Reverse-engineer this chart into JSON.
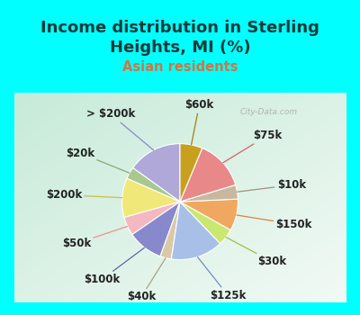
{
  "title": "Income distribution in Sterling\nHeights, MI (%)",
  "subtitle": "Asian residents",
  "title_color": "#1a3a3a",
  "subtitle_color": "#cc7744",
  "bg_cyan": "#00ffff",
  "bg_chart_gradient_left": "#c8e8d8",
  "bg_chart_gradient_right": "#e8f4f0",
  "labels": [
    "> $200k",
    "$20k",
    "$200k",
    "$50k",
    "$100k",
    "$40k",
    "$125k",
    "$30k",
    "$150k",
    "$10k",
    "$75k",
    "$60k"
  ],
  "sizes": [
    14.5,
    3.2,
    10.5,
    5.0,
    9.5,
    3.0,
    14.0,
    4.5,
    8.5,
    3.8,
    13.5,
    6.0
  ],
  "colors": [
    "#b0a8d8",
    "#a8c890",
    "#f0e878",
    "#f4b8c0",
    "#8888cc",
    "#d8caa8",
    "#a8c0e8",
    "#c8e870",
    "#f0a860",
    "#c8b8a0",
    "#e88888",
    "#c8a020"
  ],
  "line_colors": [
    "#8888cc",
    "#88aa70",
    "#c8c040",
    "#f09090",
    "#6666aa",
    "#b0a080",
    "#7090c0",
    "#a0c040",
    "#d08840",
    "#a09080",
    "#cc6666",
    "#a08010"
  ],
  "startangle": 90,
  "label_fontsize": 8.5,
  "title_fontsize": 13,
  "subtitle_fontsize": 10.5,
  "watermark": "City-Data.com"
}
